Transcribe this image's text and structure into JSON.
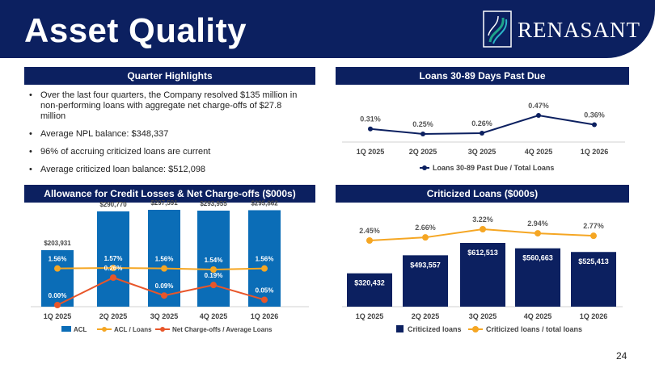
{
  "header": {
    "title": "Asset Quality",
    "logo_text": "RENASANT"
  },
  "quarter_highlights": {
    "heading": "Quarter Highlights",
    "bullets": [
      "Over the last four quarters, the Company resolved $135 million in non-performing loans with aggregate net charge-offs of $27.8 million",
      "Average NPL balance: $348,337",
      "96% of accruing criticized loans are current",
      "Average criticized loan balance: $512,098"
    ]
  },
  "loans_past_due": {
    "heading": "Loans 30-89 Days Past Due"
  },
  "acl_panel": {
    "heading": "Allowance for Credit Losses & Net Charge-offs ($000s)"
  },
  "criticized_panel": {
    "heading": "Criticized Loans ($000s)"
  },
  "colors": {
    "navy": "#0c2060",
    "bar_blue": "#0b6db7",
    "orange": "#e8562a",
    "gold": "#f5a623"
  },
  "chart_data": [
    {
      "type": "line",
      "categories": [
        "1Q 2025",
        "2Q 2025",
        "3Q 2025",
        "4Q 2025",
        "1Q 2026"
      ],
      "series": [
        {
          "name": "Loans 30-89 Past Due / Total Loans",
          "values": [
            0.31,
            0.25,
            0.26,
            0.47,
            0.36
          ],
          "labels": [
            "0.31%",
            "0.25%",
            "0.26%",
            "0.47%",
            "0.36%"
          ]
        }
      ],
      "ylim": [
        0,
        0.6
      ],
      "legend": "bottom"
    },
    {
      "type": "bar",
      "categories": [
        "1Q 2025",
        "2Q 2025",
        "3Q 2025",
        "4Q 2025",
        "1Q 2026"
      ],
      "series": [
        {
          "name": "ACL",
          "kind": "bar",
          "values": [
            203931,
            290770,
            297591,
            293955,
            295862
          ],
          "labels": [
            "$203,931",
            "$290,770",
            "$297,591",
            "$293,955",
            "$295,862"
          ]
        },
        {
          "name": "ACL / Loans",
          "kind": "line",
          "values": [
            1.56,
            1.57,
            1.56,
            1.54,
            1.56
          ],
          "labels": [
            "1.56%",
            "1.57%",
            "1.56%",
            "1.54%",
            "1.56%"
          ]
        },
        {
          "name": "Net Charge-offs / Average Loans",
          "kind": "line",
          "values": [
            0.0,
            0.26,
            0.09,
            0.19,
            0.05
          ],
          "labels": [
            "0.00%",
            "0.26%",
            "0.09%",
            "0.19%",
            "0.05%"
          ]
        }
      ],
      "legend": "bottom"
    },
    {
      "type": "bar",
      "categories": [
        "1Q 2025",
        "2Q 2025",
        "3Q 2025",
        "4Q 2025",
        "1Q 2026"
      ],
      "series": [
        {
          "name": "Criticized loans",
          "kind": "bar",
          "values": [
            320432,
            493557,
            612513,
            560663,
            525413
          ],
          "labels": [
            "$320,432",
            "$493,557",
            "$612,513",
            "$560,663",
            "$525,413"
          ]
        },
        {
          "name": "Criticized loans / total loans",
          "kind": "line",
          "values": [
            2.45,
            2.66,
            3.22,
            2.94,
            2.77
          ],
          "labels": [
            "2.45%",
            "2.66%",
            "3.22%",
            "2.94%",
            "2.77%"
          ]
        }
      ],
      "legend": "bottom"
    }
  ],
  "page_number": "24"
}
